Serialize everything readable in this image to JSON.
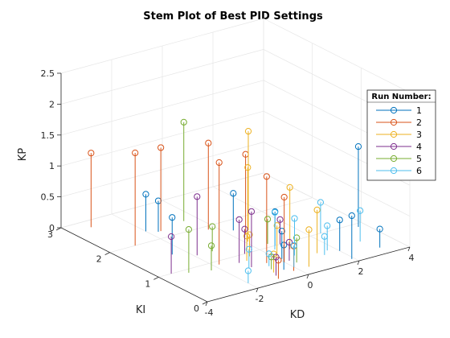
{
  "chart_data": {
    "type": "stem3",
    "title": "Stem Plot of Best PID Settings",
    "xlabel": "KD",
    "ylabel": "KI",
    "zlabel": "KP",
    "xlim": [
      -4,
      4
    ],
    "ylim": [
      0,
      3
    ],
    "zlim": [
      0,
      2.5
    ],
    "xticks": [
      "-4",
      "-2",
      "0",
      "2",
      "4"
    ],
    "yticks": [
      "0",
      "1",
      "2",
      "3"
    ],
    "zticks": [
      "0",
      "0.5",
      "1",
      "1.5",
      "2",
      "2.5"
    ],
    "grid": true,
    "legend": {
      "title": "Run Number:",
      "position": "right"
    },
    "series": [
      {
        "name": "1",
        "color": "#0072BD",
        "points": [
          [
            -2.0,
            2.3,
            0.6
          ],
          [
            -1.7,
            2.2,
            0.5
          ],
          [
            -2.5,
            1.5,
            0.6
          ],
          [
            0.3,
            1.7,
            0.6
          ],
          [
            0.6,
            1.0,
            0.55
          ],
          [
            1.9,
            0.1,
            0.7
          ],
          [
            2.0,
            0.4,
            0.5
          ],
          [
            3.7,
            0.9,
            1.3
          ],
          [
            3.2,
            0.2,
            0.3
          ],
          [
            -0.4,
            0.3,
            0.4
          ],
          [
            0.1,
            0.6,
            0.45
          ]
        ]
      },
      {
        "name": "2",
        "color": "#D95319",
        "points": [
          [
            -3.2,
            2.8,
            1.2
          ],
          [
            -3.0,
            2.0,
            1.5
          ],
          [
            -1.6,
            2.2,
            1.35
          ],
          [
            -1.8,
            0.9,
            1.65
          ],
          [
            -0.3,
            1.9,
            1.4
          ],
          [
            -0.5,
            0.6,
            1.4
          ],
          [
            0.4,
            1.5,
            1.3
          ],
          [
            0.0,
            0.5,
            1.05
          ],
          [
            -0.2,
            0.2,
            0.4
          ],
          [
            -1.0,
            0.1,
            0.3
          ]
        ]
      },
      {
        "name": "3",
        "color": "#EDB120",
        "points": [
          [
            0.7,
            1.6,
            1.6
          ],
          [
            0.1,
            1.3,
            1.2
          ],
          [
            0.8,
            0.8,
            1.0
          ],
          [
            -0.9,
            0.8,
            0.4
          ],
          [
            0.4,
            0.2,
            0.6
          ],
          [
            -0.8,
            0.3,
            0.3
          ],
          [
            -0.6,
            0.9,
            0.35
          ],
          [
            0.1,
            0.7,
            0.5
          ],
          [
            1.3,
            0.5,
            0.7
          ]
        ]
      },
      {
        "name": "4",
        "color": "#7E2F8E",
        "points": [
          [
            -3.5,
            1.0,
            0.6
          ],
          [
            -1.9,
            1.3,
            0.95
          ],
          [
            -0.9,
            0.2,
            0.3
          ],
          [
            -0.6,
            1.0,
            0.4
          ],
          [
            0.2,
            0.5,
            0.3
          ],
          [
            -1.2,
            0.8,
            0.7
          ],
          [
            -1.1,
            0.6,
            0.9
          ],
          [
            0.8,
            1.0,
            0.4
          ]
        ]
      },
      {
        "name": "5",
        "color": "#77AC30",
        "points": [
          [
            -3.0,
            0.9,
            0.7
          ],
          [
            -0.5,
            2.3,
            1.6
          ],
          [
            -2.3,
            0.8,
            0.4
          ],
          [
            -1.3,
            1.3,
            0.4
          ],
          [
            -0.7,
            0.4,
            0.2
          ],
          [
            0.3,
            0.4,
            0.4
          ],
          [
            0.5,
            1.1,
            0.4
          ]
        ]
      },
      {
        "name": "6",
        "color": "#4DBEEE",
        "points": [
          [
            -2.0,
            0.2,
            0.2
          ],
          [
            -1.2,
            0.6,
            0.3
          ],
          [
            -0.6,
            0.5,
            0.2
          ],
          [
            0.6,
            0.6,
            0.6
          ],
          [
            0.0,
            0.3,
            0.35
          ],
          [
            0.4,
            0.9,
            0.6
          ],
          [
            2.4,
            1.0,
            0.5
          ],
          [
            3.0,
            0.5,
            0.5
          ],
          [
            1.4,
            0.4,
            0.3
          ],
          [
            1.7,
            0.5,
            0.4
          ]
        ]
      }
    ]
  }
}
